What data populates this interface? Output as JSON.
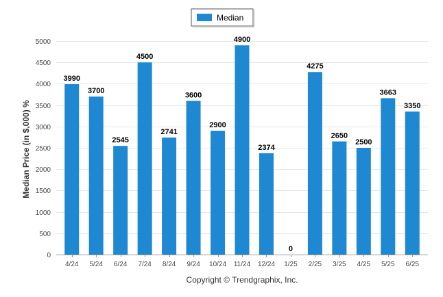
{
  "chart_data": {
    "type": "bar",
    "categories": [
      "4/24",
      "5/24",
      "6/24",
      "7/24",
      "8/24",
      "9/24",
      "10/24",
      "11/24",
      "12/24",
      "1/25",
      "2/25",
      "3/25",
      "4/25",
      "5/25",
      "6/25"
    ],
    "series": [
      {
        "name": "Median",
        "values": [
          3990,
          3700,
          2545,
          4500,
          2741,
          3600,
          2900,
          4900,
          2374,
          0,
          4275,
          2650,
          2500,
          3663,
          3350
        ]
      }
    ],
    "ylabel": "Median Price (in $,000) %",
    "xlabel": "",
    "ylim": [
      0,
      5000
    ],
    "yticks": [
      0,
      500,
      1000,
      1500,
      2000,
      2500,
      3000,
      3500,
      4000,
      4500,
      5000
    ],
    "grid": true,
    "legend": "top-center",
    "data_labels": true,
    "bar_color": "#1e88d2"
  },
  "footer": {
    "copyright": "Copyright © Trendgraphix, Inc."
  }
}
